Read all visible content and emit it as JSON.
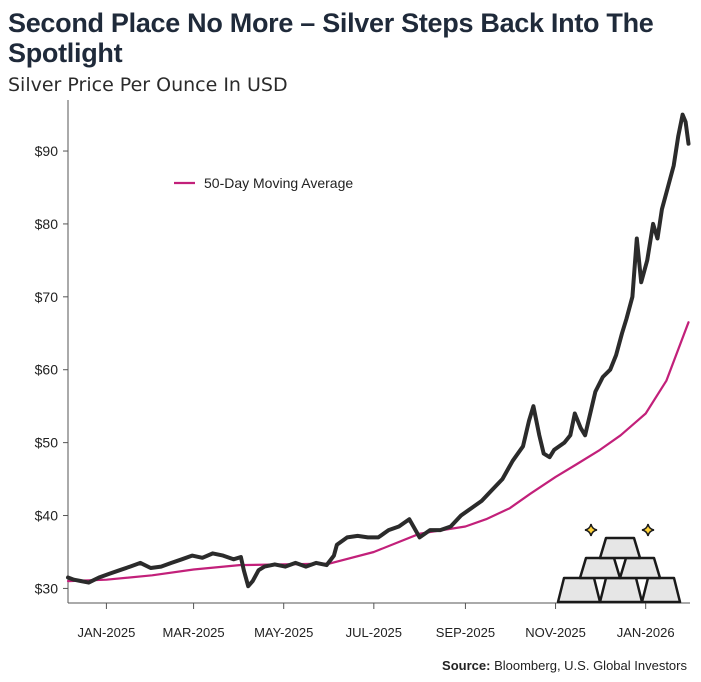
{
  "title": "Second Place No More – Silver Steps Back Into The Spotlight",
  "subtitle": "Silver Price Per Ounce In USD",
  "source_label": "Source:",
  "source_text": "Bloomberg, U.S. Global Investors",
  "colors": {
    "price": "#2b2b2b",
    "moving_average": "#c2207a",
    "title": "#1f2a3a",
    "axis": "#555555"
  },
  "chart_data": {
    "type": "line",
    "ylim": [
      28,
      97
    ],
    "y_ticks": [
      30,
      40,
      50,
      60,
      70,
      80,
      90
    ],
    "y_tick_labels": [
      "$30",
      "$40",
      "$50",
      "$60",
      "$70",
      "$80",
      "$90"
    ],
    "x_range": [
      "2024-12-06",
      "2026-01-31"
    ],
    "x_ticks": [
      "2025-01-01",
      "2025-03-01",
      "2025-05-01",
      "2025-07-01",
      "2025-09-01",
      "2025-11-01",
      "2026-01-01"
    ],
    "x_tick_labels": [
      "JAN-2025",
      "MAR-2025",
      "MAY-2025",
      "JUL-2025",
      "SEP-2025",
      "NOV-2025",
      "JAN-2026"
    ],
    "legend_position": "top-left",
    "series": [
      {
        "key": "price",
        "x": [
          "2024-12-06",
          "2024-12-10",
          "2024-12-15",
          "2024-12-20",
          "2024-12-27",
          "2025-01-03",
          "2025-01-10",
          "2025-01-17",
          "2025-01-24",
          "2025-01-31",
          "2025-02-07",
          "2025-02-14",
          "2025-02-21",
          "2025-02-28",
          "2025-03-07",
          "2025-03-14",
          "2025-03-21",
          "2025-03-28",
          "2025-04-02",
          "2025-04-04",
          "2025-04-07",
          "2025-04-10",
          "2025-04-14",
          "2025-04-18",
          "2025-04-25",
          "2025-05-02",
          "2025-05-09",
          "2025-05-16",
          "2025-05-23",
          "2025-05-30",
          "2025-06-04",
          "2025-06-06",
          "2025-06-13",
          "2025-06-20",
          "2025-06-27",
          "2025-07-04",
          "2025-07-11",
          "2025-07-18",
          "2025-07-25",
          "2025-08-01",
          "2025-08-08",
          "2025-08-15",
          "2025-08-22",
          "2025-08-29",
          "2025-09-05",
          "2025-09-12",
          "2025-09-19",
          "2025-09-26",
          "2025-10-03",
          "2025-10-10",
          "2025-10-14",
          "2025-10-17",
          "2025-10-21",
          "2025-10-24",
          "2025-10-28",
          "2025-10-31",
          "2025-11-07",
          "2025-11-11",
          "2025-11-14",
          "2025-11-18",
          "2025-11-21",
          "2025-11-28",
          "2025-12-03",
          "2025-12-08",
          "2025-12-12",
          "2025-12-16",
          "2025-12-19",
          "2025-12-23",
          "2025-12-26",
          "2025-12-29",
          "2026-01-02",
          "2026-01-06",
          "2026-01-09",
          "2026-01-12",
          "2026-01-16",
          "2026-01-20",
          "2026-01-23",
          "2026-01-26",
          "2026-01-28",
          "2026-01-30"
        ],
        "values": [
          31.5,
          31.2,
          31.0,
          30.8,
          31.5,
          32.0,
          32.5,
          33.0,
          33.5,
          32.8,
          33.0,
          33.5,
          34.0,
          34.5,
          34.2,
          34.8,
          34.5,
          34.0,
          34.3,
          32.5,
          30.3,
          31.0,
          32.5,
          33.0,
          33.3,
          33.0,
          33.5,
          33.0,
          33.5,
          33.2,
          34.5,
          36.0,
          37.0,
          37.2,
          37.0,
          37.0,
          38.0,
          38.5,
          39.5,
          37.0,
          38.0,
          38.0,
          38.5,
          40.0,
          41.0,
          42.0,
          43.5,
          45.0,
          47.5,
          49.5,
          53.0,
          55.0,
          51.0,
          48.5,
          48.0,
          49.0,
          50.0,
          51.0,
          54.0,
          52.0,
          51.0,
          57.0,
          59.0,
          60.0,
          62.0,
          65.0,
          67.0,
          70.0,
          78.0,
          72.0,
          75.0,
          80.0,
          78.0,
          82.0,
          85.0,
          88.0,
          92.0,
          95.0,
          94.0,
          91.0
        ]
      },
      {
        "key": "moving_average",
        "name": "50-Day Moving Average",
        "x": [
          "2024-12-06",
          "2025-01-01",
          "2025-02-01",
          "2025-03-01",
          "2025-04-01",
          "2025-05-01",
          "2025-06-01",
          "2025-07-01",
          "2025-08-01",
          "2025-09-01",
          "2025-09-15",
          "2025-10-01",
          "2025-10-15",
          "2025-11-01",
          "2025-11-15",
          "2025-12-01",
          "2025-12-15",
          "2026-01-01",
          "2026-01-15",
          "2026-01-30"
        ],
        "values": [
          31.0,
          31.2,
          31.8,
          32.6,
          33.2,
          33.3,
          33.4,
          35.0,
          37.5,
          38.5,
          39.5,
          41.0,
          43.0,
          45.3,
          47.0,
          49.0,
          51.0,
          54.0,
          58.5,
          66.5
        ]
      }
    ]
  }
}
